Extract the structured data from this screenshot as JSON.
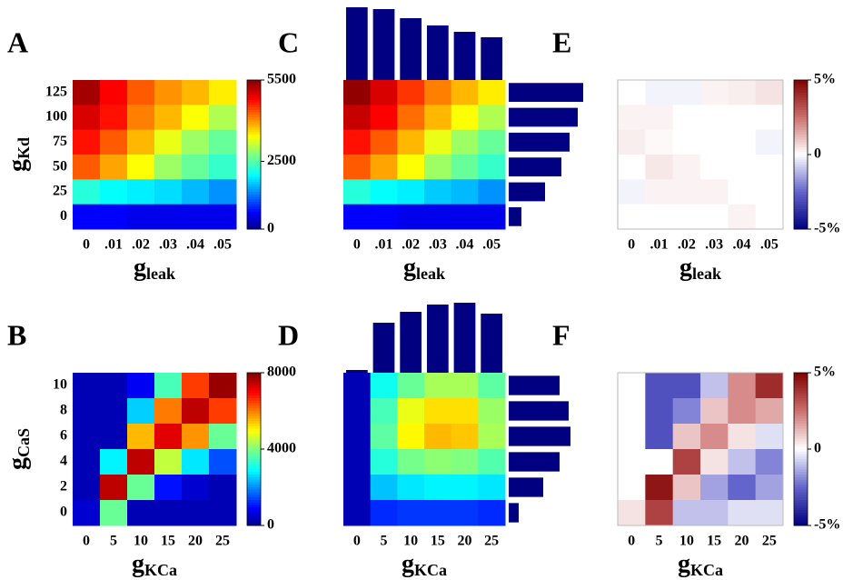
{
  "chart_data": [
    {
      "type": "heatmap",
      "panel": "A",
      "xlabel": "g",
      "xlabel_sub": "leak",
      "ylabel": "g",
      "ylabel_sub": "Kd",
      "x_categories": [
        "0",
        ".01",
        ".02",
        ".03",
        ".04",
        ".05"
      ],
      "y_categories": [
        "125",
        "100",
        "75",
        "50",
        "25",
        "0"
      ],
      "values": [
        [
          5300,
          4800,
          4300,
          4000,
          3800,
          3500
        ],
        [
          5000,
          4700,
          4100,
          3800,
          3400,
          3000
        ],
        [
          4700,
          4300,
          3800,
          3300,
          2900,
          2600
        ],
        [
          4300,
          3900,
          3400,
          2900,
          2600,
          2300
        ],
        [
          2200,
          2000,
          1900,
          1800,
          1600,
          1400
        ],
        [
          600,
          600,
          500,
          500,
          500,
          500
        ]
      ],
      "colormap": "jet",
      "clim": [
        0,
        5500
      ],
      "cticks": [
        0,
        2500,
        5500
      ]
    },
    {
      "type": "heatmap",
      "panel": "C",
      "xlabel": "g",
      "xlabel_sub": "leak",
      "x_categories": [
        "0",
        ".01",
        ".02",
        ".03",
        ".04",
        ".05"
      ],
      "values": [
        [
          5400,
          5000,
          4500,
          4100,
          3800,
          3500
        ],
        [
          5100,
          4800,
          4200,
          3800,
          3400,
          3000
        ],
        [
          4700,
          4300,
          3800,
          3300,
          2900,
          2600
        ],
        [
          4300,
          3900,
          3400,
          2900,
          2600,
          2300
        ],
        [
          2200,
          2000,
          1900,
          1700,
          1600,
          1400
        ],
        [
          600,
          600,
          500,
          500,
          500,
          500
        ]
      ],
      "colormap": "jet",
      "clim": [
        0,
        5500
      ],
      "top_bars": [
        80,
        78,
        68,
        60,
        53,
        47
      ],
      "right_bars": [
        82,
        76,
        67,
        58,
        40,
        14
      ],
      "bar_color": "#000080"
    },
    {
      "type": "heatmap",
      "panel": "E",
      "xlabel": "g",
      "xlabel_sub": "leak",
      "x_categories": [
        "0",
        ".01",
        ".02",
        ".03",
        ".04",
        ".05"
      ],
      "values": [
        [
          0,
          -0.2,
          -0.2,
          0.2,
          0.3,
          0.5
        ],
        [
          0.2,
          0.2,
          0,
          0,
          0,
          0
        ],
        [
          0.3,
          0.1,
          0,
          0,
          0,
          -0.2
        ],
        [
          0,
          0.4,
          0.2,
          0,
          0,
          0
        ],
        [
          -0.2,
          0.2,
          0.2,
          0.2,
          0,
          0
        ],
        [
          0,
          0,
          0,
          0,
          0.2,
          0
        ]
      ],
      "colormap": "bwr",
      "clim": [
        -5,
        5
      ],
      "cticks": [
        {
          "value": 5,
          "label": "5%"
        },
        0,
        {
          "value": -5,
          "label": "-5%"
        }
      ]
    },
    {
      "type": "heatmap",
      "panel": "B",
      "xlabel": "g",
      "xlabel_sub": "KCa",
      "ylabel": "g",
      "ylabel_sub": "CaS",
      "x_categories": [
        "0",
        "5",
        "10",
        "15",
        "20",
        "25"
      ],
      "y_categories": [
        "10",
        "8",
        "6",
        "4",
        "2",
        "0"
      ],
      "values": [
        [
          300,
          300,
          800,
          3500,
          6500,
          7800
        ],
        [
          300,
          300,
          2500,
          6000,
          7500,
          6500
        ],
        [
          300,
          300,
          5500,
          7200,
          5800,
          3800
        ],
        [
          300,
          2800,
          7500,
          4500,
          2700,
          1500
        ],
        [
          300,
          7500,
          3800,
          1000,
          500,
          300
        ],
        [
          500,
          3800,
          300,
          300,
          300,
          300
        ]
      ],
      "colormap": "jet",
      "clim": [
        0,
        8000
      ],
      "cticks": [
        0,
        4000,
        8000
      ]
    },
    {
      "type": "heatmap",
      "panel": "D",
      "xlabel": "g",
      "xlabel_sub": "KCa",
      "x_categories": [
        "0",
        "5",
        "10",
        "15",
        "20",
        "25"
      ],
      "values": [
        [
          300,
          3000,
          3800,
          4300,
          4300,
          3700
        ],
        [
          300,
          3500,
          4800,
          5200,
          5200,
          4200
        ],
        [
          300,
          3700,
          5000,
          5500,
          5400,
          4300
        ],
        [
          300,
          3200,
          3900,
          4100,
          4000,
          3600
        ],
        [
          300,
          2400,
          2700,
          2800,
          2800,
          2700
        ],
        [
          300,
          1200,
          1300,
          1300,
          1300,
          1200
        ]
      ],
      "colormap": "jet",
      "clim": [
        0,
        8000
      ],
      "top_bars": [
        3,
        55,
        67,
        75,
        77,
        65
      ],
      "right_bars": [
        56,
        66,
        68,
        56,
        38,
        11
      ],
      "bar_color": "#000080"
    },
    {
      "type": "heatmap",
      "panel": "F",
      "xlabel": "g",
      "xlabel_sub": "KCa",
      "x_categories": [
        "0",
        "5",
        "10",
        "15",
        "20",
        "25"
      ],
      "values": [
        [
          0,
          -3,
          -3,
          -1,
          2,
          4
        ],
        [
          0,
          -3,
          -2,
          1,
          2,
          1.5
        ],
        [
          0,
          -3,
          1,
          2,
          0.5,
          -0.5
        ],
        [
          0,
          0,
          3.5,
          0.5,
          -1,
          -2
        ],
        [
          0,
          4.5,
          1,
          -1.5,
          -2.5,
          -1.5
        ],
        [
          0.5,
          3.5,
          -1,
          -1,
          -0.5,
          -0.5
        ]
      ],
      "colormap": "bwr",
      "clim": [
        -5,
        5
      ],
      "cticks": [
        {
          "value": 5,
          "label": "5%"
        },
        0,
        {
          "value": -5,
          "label": "-5%"
        }
      ]
    }
  ]
}
